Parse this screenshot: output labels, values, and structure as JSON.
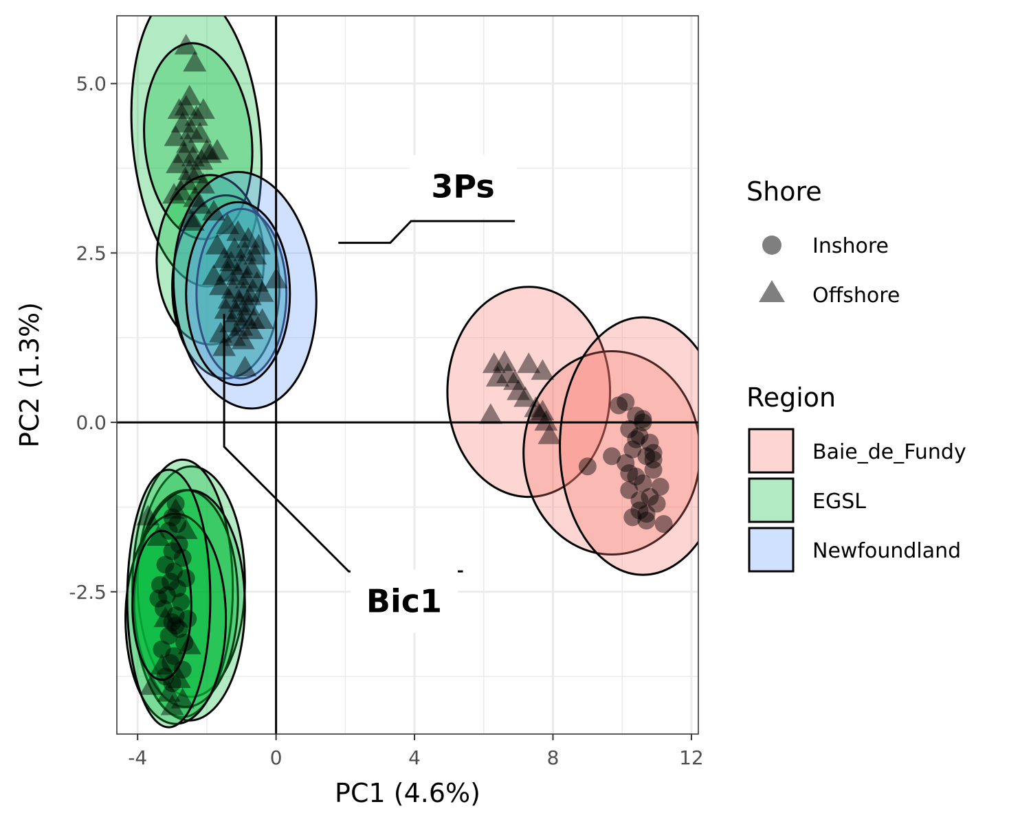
{
  "chart_data": {
    "type": "scatter",
    "xlabel": "PC1 (4.6%)",
    "ylabel": "PC2 (1.3%)",
    "xlim": [
      -4.6,
      12.2
    ],
    "ylim": [
      -4.6,
      6.0
    ],
    "x_ticks": [
      -4,
      0,
      4,
      8,
      12
    ],
    "x_tick_labels": [
      "-4",
      "0",
      "4",
      "8",
      "12"
    ],
    "y_ticks": [
      -2.5,
      0,
      2.5,
      5
    ],
    "y_tick_labels": [
      "-2.5",
      "0.0",
      "2.5",
      "5.0"
    ],
    "grid": true,
    "reference_lines": {
      "x": 0,
      "y": 0
    },
    "legends": [
      {
        "title": "Shore",
        "placement": "right",
        "entries": [
          {
            "label": "Inshore",
            "shape": "circle"
          },
          {
            "label": "Offshore",
            "shape": "triangle"
          }
        ]
      },
      {
        "title": "Region",
        "placement": "right",
        "entries": [
          {
            "label": "Baie_de_Fundy",
            "color": "#F8766D"
          },
          {
            "label": "EGSL",
            "color": "#00BA38"
          },
          {
            "label": "Newfoundland",
            "color": "#619CFF"
          }
        ]
      }
    ],
    "annotations": [
      {
        "label": "3Ps",
        "label_x": 5.4,
        "label_y": 3.48,
        "line": [
          [
            1.8,
            2.65
          ],
          [
            3.3,
            2.65
          ],
          [
            3.9,
            2.97
          ],
          [
            6.9,
            2.97
          ]
        ]
      },
      {
        "label": "Bic1",
        "label_x": 3.7,
        "label_y": -2.64,
        "line": [
          [
            -1.5,
            1.6
          ],
          [
            -1.5,
            -0.36
          ],
          [
            2.1,
            -2.2
          ],
          [
            5.4,
            -2.2
          ]
        ]
      }
    ],
    "ellipses": [
      {
        "region": "EGSL",
        "cx": -2.3,
        "cy": 4.2,
        "rx": 1.85,
        "ry": 2.2,
        "angle": -5
      },
      {
        "region": "EGSL",
        "cx": -2.25,
        "cy": 4.15,
        "rx": 1.55,
        "ry": 1.45,
        "angle": -5
      },
      {
        "region": "EGSL",
        "cx": -1.9,
        "cy": 2.4,
        "rx": 1.55,
        "ry": 1.25,
        "angle": 0
      },
      {
        "region": "EGSL",
        "cx": -1.45,
        "cy": 2.0,
        "rx": 1.55,
        "ry": 1.35,
        "angle": 0
      },
      {
        "region": "EGSL",
        "cx": -1.0,
        "cy": 1.9,
        "rx": 1.3,
        "ry": 1.25,
        "angle": 0
      },
      {
        "region": "Newfoundland",
        "cx": -0.9,
        "cy": 1.95,
        "rx": 2.05,
        "ry": 1.75,
        "angle": -5
      },
      {
        "region": "Newfoundland",
        "cx": -1.1,
        "cy": 1.9,
        "rx": 1.5,
        "ry": 1.35,
        "angle": 0
      },
      {
        "region": "EGSL",
        "cx": -2.45,
        "cy": -2.35,
        "rx": 1.55,
        "ry": 1.7,
        "angle": 0
      },
      {
        "region": "EGSL",
        "cx": -2.7,
        "cy": -2.45,
        "rx": 1.45,
        "ry": 1.9,
        "angle": 0
      },
      {
        "region": "EGSL",
        "cx": -2.6,
        "cy": -2.6,
        "rx": 1.5,
        "ry": 1.6,
        "angle": 0
      },
      {
        "region": "EGSL",
        "cx": -2.5,
        "cy": -2.7,
        "rx": 1.6,
        "ry": 1.7,
        "angle": 0
      },
      {
        "region": "EGSL",
        "cx": -2.9,
        "cy": -2.9,
        "rx": 1.45,
        "ry": 1.55,
        "angle": 0
      },
      {
        "region": "EGSL",
        "cx": -3.1,
        "cy": -2.6,
        "rx": 1.2,
        "ry": 1.9,
        "angle": 0
      },
      {
        "region": "EGSL",
        "cx": -3.3,
        "cy": -2.7,
        "rx": 0.85,
        "ry": 1.1,
        "angle": 0
      },
      {
        "region": "Baie_de_Fundy",
        "cx": 7.3,
        "cy": 0.45,
        "rx": 2.35,
        "ry": 1.55,
        "angle": 0
      },
      {
        "region": "Baie_de_Fundy",
        "cx": 9.7,
        "cy": -0.45,
        "rx": 2.55,
        "ry": 1.5,
        "angle": 0
      },
      {
        "region": "Baie_de_Fundy",
        "cx": 10.6,
        "cy": -0.35,
        "rx": 2.4,
        "ry": 1.9,
        "angle": 0
      }
    ],
    "series": [
      {
        "region": "EGSL",
        "shore": "Offshore",
        "x": [
          -2.6,
          -2.35,
          -2.5,
          -2.8,
          -2.3,
          -2.1,
          -2.7,
          -2.45,
          -2.2,
          -2.9,
          -2.55,
          -2.0,
          -2.65,
          -2.4,
          -2.15,
          -2.85,
          -2.5,
          -2.3,
          -1.9,
          -2.6,
          -2.75,
          -2.35,
          -1.8,
          -2.5,
          -2.2,
          -2.95,
          -2.4,
          -1.7,
          -2.6,
          -2.1
        ],
        "y": [
          5.55,
          5.3,
          4.8,
          4.6,
          4.5,
          4.6,
          4.4,
          4.3,
          4.25,
          4.2,
          4.1,
          4.0,
          3.95,
          3.9,
          3.85,
          3.8,
          3.7,
          3.65,
          3.95,
          3.55,
          3.4,
          3.3,
          3.1,
          3.0,
          3.2,
          3.35,
          2.95,
          4.0,
          4.65,
          3.5
        ]
      },
      {
        "region": "EGSL",
        "shore": "Offshore",
        "x": [
          -1.4,
          -1.1,
          -0.8,
          -0.5,
          -1.2,
          -0.9,
          -0.6,
          -1.5,
          -1.3,
          -1.0,
          -0.7,
          -1.4,
          -1.1,
          -0.85,
          -0.55,
          -1.6,
          -1.25,
          -0.95,
          -0.75,
          -1.35,
          -1.05,
          -0.8,
          -1.45,
          -1.15,
          -0.9,
          -0.65,
          -1.3,
          -1.0,
          -0.7,
          -1.2,
          -0.95,
          -1.5,
          -1.7,
          -1.8,
          -0.4,
          0.0
        ],
        "y": [
          2.9,
          2.8,
          2.7,
          2.6,
          2.55,
          2.5,
          2.45,
          2.4,
          2.35,
          2.3,
          2.25,
          2.2,
          2.15,
          2.1,
          2.05,
          2.0,
          1.95,
          1.9,
          1.85,
          1.8,
          1.75,
          1.7,
          1.65,
          1.6,
          1.55,
          1.5,
          1.45,
          1.4,
          1.35,
          1.25,
          1.2,
          1.1,
          2.6,
          2.15,
          1.9,
          2.1
        ]
      },
      {
        "region": "Newfoundland",
        "shore": "Offshore",
        "x": [
          -0.9,
          -1.6,
          -0.4
        ],
        "y": [
          0.8,
          1.3,
          1.5
        ]
      },
      {
        "region": "EGSL",
        "shore": "Inshore",
        "x": [
          -2.9,
          -3.0,
          -3.1,
          -2.8,
          -2.7,
          -3.2,
          -2.95,
          -3.05,
          -2.85,
          -3.15,
          -2.75,
          -3.25,
          -2.9,
          -3.0,
          -2.8,
          -3.1,
          -2.65,
          -3.3,
          -2.95,
          -3.05,
          -2.7,
          -3.2,
          -2.85,
          -3.0,
          -3.35,
          -2.6,
          -3.4,
          -2.55,
          -3.0,
          -2.9
        ],
        "y": [
          -1.2,
          -1.4,
          -1.6,
          -1.8,
          -2.0,
          -2.1,
          -2.2,
          -2.35,
          -2.45,
          -2.55,
          -2.65,
          -2.75,
          -2.85,
          -2.95,
          -3.05,
          -3.15,
          -3.25,
          -3.35,
          -3.45,
          -3.55,
          -3.65,
          -3.75,
          -1.5,
          -1.9,
          -2.4,
          -2.3,
          -2.6,
          -2.9,
          -3.85,
          -3.0
        ]
      },
      {
        "region": "EGSL",
        "shore": "Offshore",
        "x": [
          -3.7,
          -3.4,
          -2.9,
          -2.6,
          -3.1,
          -2.7,
          -3.6,
          -3.3,
          -2.8,
          -3.2,
          -2.5,
          -3.0
        ],
        "y": [
          -1.4,
          -1.7,
          -1.3,
          -1.6,
          -4.0,
          -4.1,
          -3.9,
          -3.6,
          -3.8,
          -2.9,
          -3.3,
          -4.2
        ]
      },
      {
        "region": "Baie_de_Fundy",
        "shore": "Offshore",
        "x": [
          6.3,
          6.6,
          6.4,
          6.7,
          6.9,
          7.0,
          7.2,
          7.5,
          7.6,
          7.7,
          7.8,
          7.9,
          7.3,
          6.2,
          7.7
        ],
        "y": [
          0.85,
          0.88,
          0.65,
          0.7,
          0.6,
          0.45,
          0.35,
          0.2,
          0.1,
          0.15,
          0.0,
          -0.2,
          0.85,
          0.1,
          0.75
        ]
      },
      {
        "region": "Baie_de_Fundy",
        "shore": "Inshore",
        "x": [
          9.9,
          10.1,
          10.4,
          10.2,
          10.6,
          10.5,
          10.8,
          10.3,
          10.7,
          10.1,
          10.9,
          10.4,
          10.6,
          10.2,
          10.8,
          11.0,
          10.5,
          10.3,
          11.2,
          10.7,
          9.7,
          9.0,
          10.6,
          10.9,
          10.4,
          10.2,
          11.1,
          10.5,
          10.7,
          10.9
        ],
        "y": [
          0.25,
          0.3,
          0.1,
          -0.1,
          0.0,
          -0.2,
          -0.3,
          -0.4,
          -0.5,
          -0.6,
          -0.7,
          -0.8,
          -0.9,
          -1.0,
          -1.1,
          -1.2,
          -1.3,
          -1.4,
          -1.5,
          -1.45,
          -0.5,
          -0.65,
          0.05,
          -0.45,
          -0.25,
          -0.75,
          -0.95,
          -1.15,
          -1.35,
          -0.55
        ]
      }
    ]
  }
}
